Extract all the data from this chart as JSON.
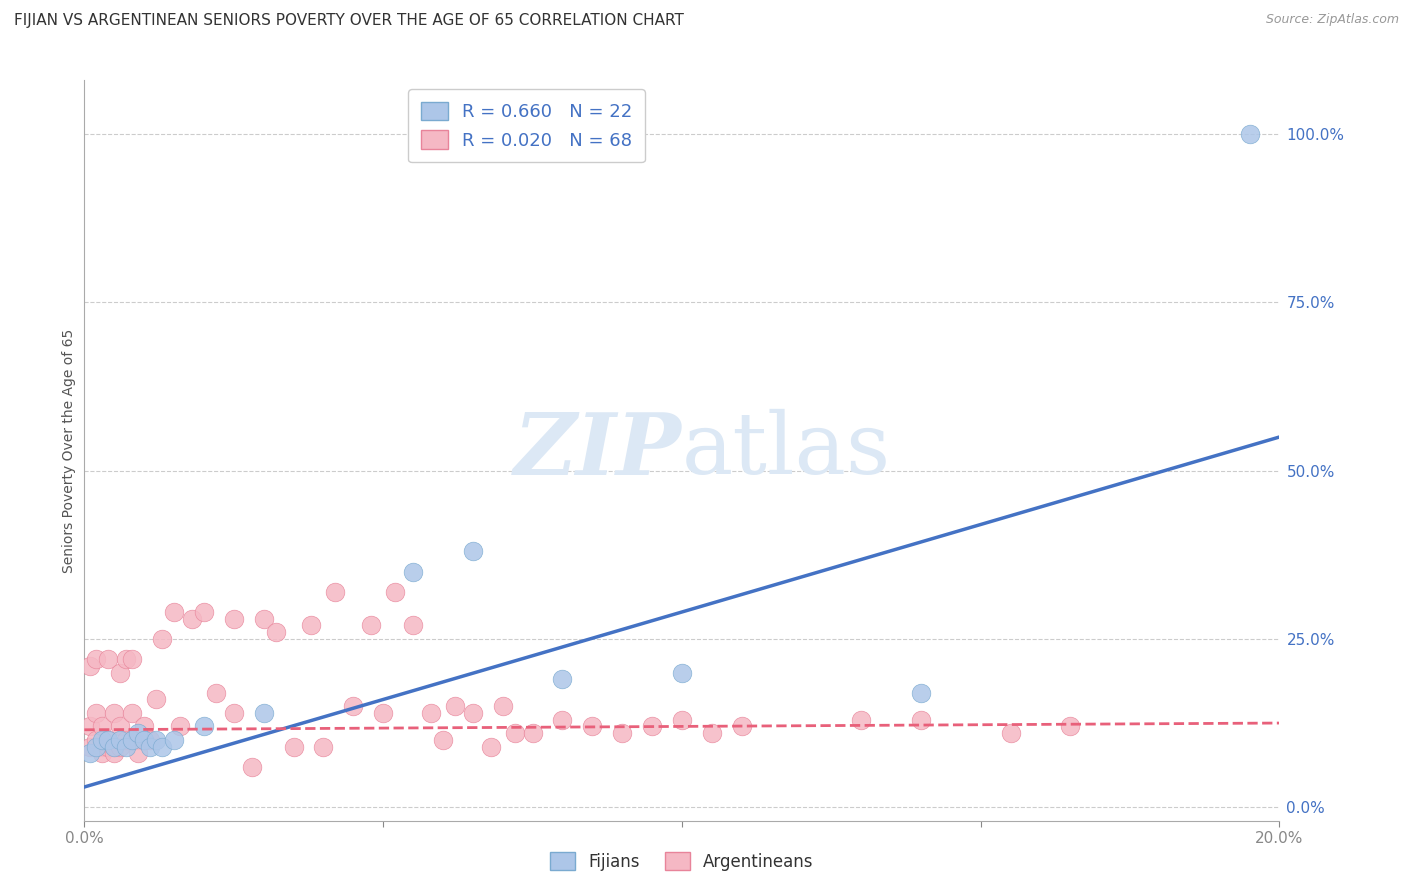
{
  "title": "FIJIAN VS ARGENTINEAN SENIORS POVERTY OVER THE AGE OF 65 CORRELATION CHART",
  "source": "Source: ZipAtlas.com",
  "ylabel": "Seniors Poverty Over the Age of 65",
  "ytick_labels": [
    "0.0%",
    "25.0%",
    "50.0%",
    "75.0%",
    "100.0%"
  ],
  "ytick_values": [
    0.0,
    0.25,
    0.5,
    0.75,
    1.0
  ],
  "xlim": [
    0.0,
    0.2
  ],
  "ylim": [
    -0.02,
    1.08
  ],
  "fijian_color": "#adc6e8",
  "argentinean_color": "#f5b8c4",
  "fijian_edge_color": "#7aaad0",
  "argentinean_edge_color": "#e8849a",
  "fijian_line_color": "#4472c4",
  "argentinean_line_color": "#e8607a",
  "watermark_color": "#dce8f5",
  "legend_fijian_label": "R = 0.660   N = 22",
  "legend_argentinean_label": "R = 0.020   N = 68",
  "fijian_x": [
    0.001,
    0.002,
    0.003,
    0.004,
    0.005,
    0.006,
    0.007,
    0.008,
    0.009,
    0.01,
    0.011,
    0.012,
    0.013,
    0.015,
    0.02,
    0.03,
    0.055,
    0.065,
    0.08,
    0.1,
    0.14,
    0.195
  ],
  "fijian_y": [
    0.08,
    0.09,
    0.1,
    0.1,
    0.09,
    0.1,
    0.09,
    0.1,
    0.11,
    0.1,
    0.09,
    0.1,
    0.09,
    0.1,
    0.12,
    0.14,
    0.35,
    0.38,
    0.19,
    0.2,
    0.17,
    1.0
  ],
  "argentinean_x": [
    0.001,
    0.001,
    0.001,
    0.002,
    0.002,
    0.002,
    0.003,
    0.003,
    0.003,
    0.004,
    0.004,
    0.004,
    0.005,
    0.005,
    0.005,
    0.006,
    0.006,
    0.006,
    0.007,
    0.007,
    0.008,
    0.008,
    0.008,
    0.009,
    0.009,
    0.01,
    0.01,
    0.011,
    0.012,
    0.013,
    0.015,
    0.016,
    0.018,
    0.02,
    0.022,
    0.025,
    0.025,
    0.028,
    0.03,
    0.032,
    0.035,
    0.038,
    0.04,
    0.042,
    0.045,
    0.048,
    0.05,
    0.052,
    0.055,
    0.058,
    0.06,
    0.062,
    0.065,
    0.068,
    0.07,
    0.072,
    0.075,
    0.08,
    0.085,
    0.09,
    0.095,
    0.1,
    0.105,
    0.11,
    0.13,
    0.14,
    0.155,
    0.165
  ],
  "argentinean_y": [
    0.09,
    0.12,
    0.21,
    0.1,
    0.14,
    0.22,
    0.09,
    0.12,
    0.08,
    0.1,
    0.22,
    0.09,
    0.09,
    0.14,
    0.08,
    0.09,
    0.12,
    0.2,
    0.1,
    0.22,
    0.1,
    0.14,
    0.22,
    0.1,
    0.08,
    0.1,
    0.12,
    0.1,
    0.16,
    0.25,
    0.29,
    0.12,
    0.28,
    0.29,
    0.17,
    0.28,
    0.14,
    0.06,
    0.28,
    0.26,
    0.09,
    0.27,
    0.09,
    0.32,
    0.15,
    0.27,
    0.14,
    0.32,
    0.27,
    0.14,
    0.1,
    0.15,
    0.14,
    0.09,
    0.15,
    0.11,
    0.11,
    0.13,
    0.12,
    0.11,
    0.12,
    0.13,
    0.11,
    0.12,
    0.13,
    0.13,
    0.11,
    0.12
  ],
  "fijian_line_x0": 0.0,
  "fijian_line_y0": 0.03,
  "fijian_line_x1": 0.2,
  "fijian_line_y1": 0.55,
  "argentinean_line_x0": 0.0,
  "argentinean_line_y0": 0.115,
  "argentinean_line_x1": 0.2,
  "argentinean_line_y1": 0.125,
  "title_fontsize": 11,
  "source_fontsize": 9,
  "tick_fontsize": 11,
  "ylabel_fontsize": 10
}
